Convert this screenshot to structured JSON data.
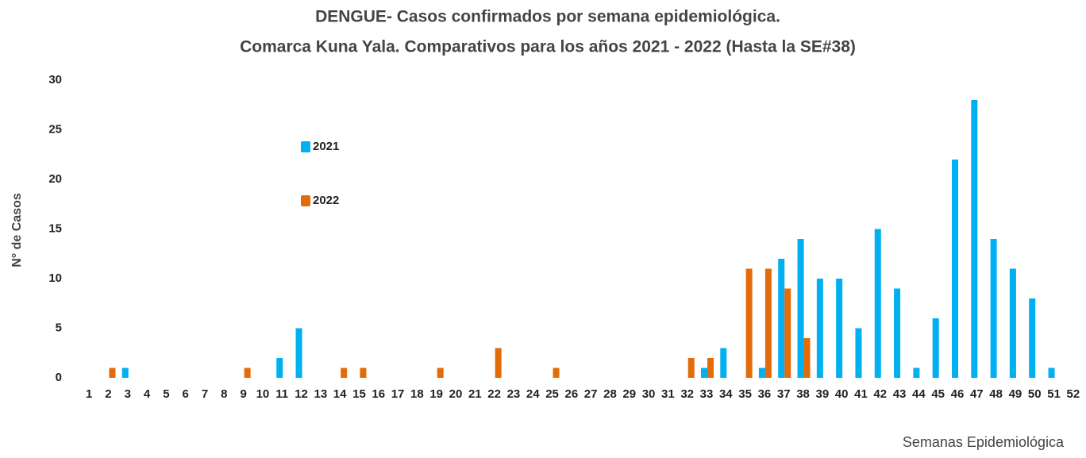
{
  "chart_data": {
    "type": "bar",
    "title": "DENGUE- Casos confirmados por semana epidemiológica.",
    "subtitle": "Comarca Kuna Yala. Comparativos para los años 2021 - 2022 (Hasta la  SE#38)",
    "x_label": "Semanas Epidemiológica",
    "y_label": "N° de Casos",
    "categories": [
      1,
      2,
      3,
      4,
      5,
      6,
      7,
      8,
      9,
      10,
      11,
      12,
      13,
      14,
      15,
      16,
      17,
      18,
      19,
      20,
      21,
      22,
      23,
      24,
      25,
      26,
      27,
      28,
      29,
      30,
      31,
      32,
      33,
      34,
      35,
      36,
      37,
      38,
      39,
      40,
      41,
      42,
      43,
      44,
      45,
      46,
      47,
      48,
      49,
      50,
      51,
      52
    ],
    "series": [
      {
        "name": "2021",
        "color": "#00b0f0",
        "values": [
          0,
          0,
          1,
          0,
          0,
          0,
          0,
          0,
          0,
          0,
          2,
          5,
          0,
          0,
          0,
          0,
          0,
          0,
          0,
          0,
          0,
          0,
          0,
          0,
          0,
          0,
          0,
          0,
          0,
          0,
          0,
          0,
          1,
          3,
          0,
          1,
          12,
          14,
          10,
          10,
          5,
          15,
          9,
          1,
          6,
          22,
          28,
          14,
          11,
          8,
          1,
          0
        ]
      },
      {
        "name": "2022",
        "color": "#e36c0a",
        "values": [
          0,
          1,
          0,
          0,
          0,
          0,
          0,
          0,
          1,
          0,
          0,
          0,
          0,
          1,
          1,
          0,
          0,
          0,
          1,
          0,
          0,
          3,
          0,
          0,
          1,
          0,
          0,
          0,
          0,
          0,
          0,
          2,
          2,
          0,
          11,
          11,
          9,
          4,
          0,
          0,
          0,
          0,
          0,
          0,
          0,
          0,
          0,
          0,
          0,
          0,
          0,
          0
        ]
      }
    ],
    "ylim": [
      0,
      30
    ],
    "yticks": [
      0,
      5,
      10,
      15,
      20,
      25,
      30
    ],
    "grid": false
  }
}
